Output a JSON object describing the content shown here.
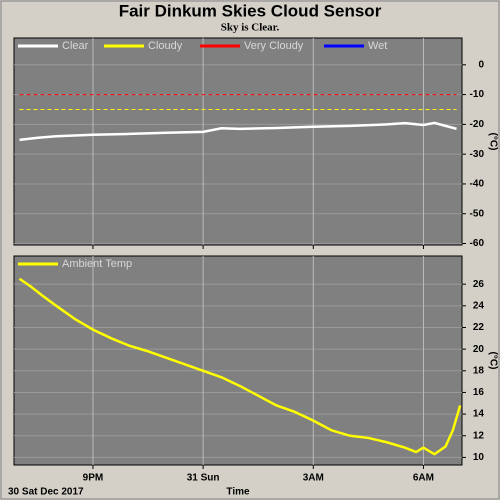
{
  "chart_data": [
    {
      "type": "line",
      "title": "Fair Dinkum Skies Cloud Sensor",
      "subtitle": "Sky is Clear.",
      "y_label": "(°C)",
      "x": [
        19.0,
        19.5,
        20.0,
        21.0,
        22.0,
        23.0,
        24.0,
        24.5,
        25.0,
        26.0,
        27.0,
        28.0,
        29.0,
        29.5,
        30.0,
        30.3,
        30.6,
        30.9
      ],
      "series": [
        {
          "name": "Clear",
          "color": "#ffffff",
          "values": [
            -25.2,
            -24.5,
            -24.0,
            -23.5,
            -23.2,
            -22.8,
            -22.5,
            -21.3,
            -21.5,
            -21.2,
            -20.8,
            -20.5,
            -20.0,
            -19.6,
            -20.2,
            -19.5,
            -20.5,
            -21.5
          ]
        },
        {
          "name": "Cloudy",
          "color": "#ffff00",
          "values": [
            -15,
            -15,
            -15,
            -15,
            -15,
            -15,
            -15,
            -15,
            -15,
            -15,
            -15,
            -15,
            -15,
            -15,
            -15,
            -15,
            -15,
            -15
          ]
        },
        {
          "name": "Very Cloudy",
          "color": "#ff0000",
          "values": [
            -10,
            -10,
            -10,
            -10,
            -10,
            -10,
            -10,
            -10,
            -10,
            -10,
            -10,
            -10,
            -10,
            -10,
            -10,
            -10,
            -10,
            -10
          ]
        },
        {
          "name": "Wet",
          "color": "#0000ff",
          "values": [
            null,
            null,
            null,
            null,
            null,
            null,
            null,
            null,
            null,
            null,
            null,
            null,
            null,
            null,
            null,
            null,
            null,
            null
          ]
        }
      ],
      "xlim": [
        18.85,
        31.05
      ],
      "xticks": [
        21,
        24,
        27,
        30
      ],
      "ylim": [
        -60.5,
        9
      ],
      "yticks": [
        0,
        -10,
        -20,
        -30,
        -40,
        -50,
        -60
      ],
      "grid": true
    },
    {
      "type": "line",
      "y_label": "(°C)",
      "x_label": "Time",
      "date_label": "30 Sat Dec 2017",
      "x": [
        19.0,
        19.3,
        19.6,
        20.0,
        20.5,
        21.0,
        21.5,
        22.0,
        22.5,
        23.0,
        23.5,
        24.0,
        24.5,
        25.0,
        25.5,
        26.0,
        26.5,
        27.0,
        27.5,
        28.0,
        28.5,
        29.0,
        29.5,
        29.8,
        30.0,
        30.3,
        30.6,
        30.8,
        31.0
      ],
      "series": [
        {
          "name": "Ambient Temp",
          "color": "#ffff00",
          "values": [
            26.5,
            25.8,
            25.0,
            24.0,
            22.8,
            21.8,
            21.0,
            20.3,
            19.8,
            19.2,
            18.6,
            18.0,
            17.4,
            16.6,
            15.7,
            14.8,
            14.2,
            13.4,
            12.5,
            12.0,
            11.8,
            11.4,
            10.9,
            10.5,
            10.9,
            10.3,
            11.0,
            12.5,
            14.8
          ]
        }
      ],
      "xlim": [
        18.85,
        31.05
      ],
      "xticks": [
        {
          "value": 21,
          "label": "9PM"
        },
        {
          "value": 24,
          "label": "31 Sun"
        },
        {
          "value": 27,
          "label": "3AM"
        },
        {
          "value": 30,
          "label": "6AM"
        }
      ],
      "ylim": [
        9.3,
        28.6
      ],
      "yticks": [
        26,
        24,
        22,
        20,
        18,
        16,
        14,
        12,
        10
      ],
      "grid": true
    }
  ]
}
